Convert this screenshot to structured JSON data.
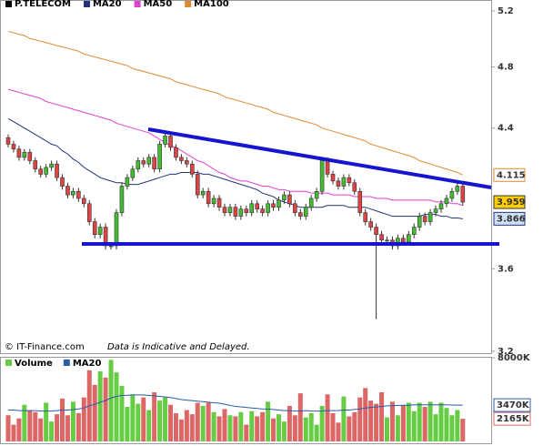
{
  "chart_data": [
    {
      "type": "candlestick",
      "log": true,
      "ylim": [
        3.2,
        5.2
      ],
      "yticks": [
        3.2,
        3.6,
        4.4,
        4.8,
        5.2
      ],
      "annotations": [
        "© IT-Finance.com",
        "Data is Indicative and Delayed."
      ],
      "price": {
        "name": "P.TELECOM",
        "color": "#000000",
        "up_color": "#44bb33",
        "down_color": "#dd4444",
        "box": "#ffcc00",
        "open": [
          4.34,
          4.3,
          4.27,
          4.22,
          4.25,
          4.2,
          4.15,
          4.12,
          4.16,
          4.18,
          4.1,
          4.05,
          4.0,
          4.02,
          3.98,
          3.95,
          3.85,
          3.78,
          3.82,
          3.72,
          3.72,
          3.9,
          4.05,
          4.1,
          4.15,
          4.2,
          4.18,
          4.22,
          4.15,
          4.3,
          4.35,
          4.28,
          4.22,
          4.2,
          4.18,
          4.12,
          4.0,
          4.02,
          3.95,
          3.98,
          3.93,
          3.9,
          3.93,
          3.88,
          3.92,
          3.9,
          3.95,
          3.92,
          3.9,
          3.95,
          3.93,
          3.97,
          4.0,
          3.95,
          3.9,
          3.88,
          3.93,
          3.98,
          4.02,
          4.2,
          4.12,
          4.08,
          4.05,
          4.1,
          4.07,
          4.02,
          3.9,
          3.85,
          3.82,
          3.78,
          3.75,
          3.75,
          3.72,
          3.76,
          3.74,
          3.78,
          3.82,
          3.88,
          3.85,
          3.9,
          3.92,
          3.95,
          3.98,
          4.02,
          4.05
        ],
        "high": [
          4.36,
          4.32,
          4.29,
          4.27,
          4.27,
          4.22,
          4.17,
          4.18,
          4.2,
          4.2,
          4.12,
          4.07,
          4.04,
          4.04,
          4.0,
          3.97,
          3.87,
          3.84,
          3.84,
          3.74,
          3.92,
          4.07,
          4.12,
          4.17,
          4.22,
          4.22,
          4.24,
          4.24,
          4.32,
          4.37,
          4.37,
          4.3,
          4.24,
          4.22,
          4.2,
          4.14,
          4.04,
          4.04,
          4.0,
          4.0,
          3.95,
          3.95,
          3.95,
          3.94,
          3.94,
          3.97,
          3.97,
          3.94,
          3.97,
          3.97,
          3.99,
          4.02,
          4.02,
          3.97,
          3.92,
          3.95,
          4.0,
          4.04,
          4.22,
          4.22,
          4.14,
          4.1,
          4.12,
          4.12,
          4.09,
          4.04,
          3.92,
          3.87,
          3.84,
          3.8,
          3.77,
          3.77,
          3.78,
          3.78,
          3.8,
          3.84,
          3.9,
          3.9,
          3.92,
          3.94,
          3.97,
          4.0,
          4.04,
          4.07,
          4.08
        ],
        "low": [
          4.28,
          4.25,
          4.2,
          4.2,
          4.18,
          4.13,
          4.1,
          4.1,
          4.14,
          4.08,
          4.03,
          3.98,
          3.98,
          3.96,
          3.93,
          3.83,
          3.76,
          3.76,
          3.7,
          3.7,
          3.7,
          3.88,
          4.03,
          4.08,
          4.13,
          4.16,
          4.16,
          4.13,
          4.13,
          4.28,
          4.26,
          4.2,
          4.18,
          4.16,
          4.1,
          3.98,
          3.98,
          3.93,
          3.93,
          3.91,
          3.88,
          3.88,
          3.86,
          3.86,
          3.88,
          3.88,
          3.9,
          3.88,
          3.88,
          3.91,
          3.91,
          3.95,
          3.93,
          3.88,
          3.86,
          3.86,
          3.91,
          3.96,
          4.0,
          4.1,
          4.06,
          4.03,
          4.03,
          4.05,
          4.0,
          3.88,
          3.83,
          3.8,
          3.35,
          3.73,
          3.73,
          3.7,
          3.7,
          3.72,
          3.72,
          3.76,
          3.8,
          3.83,
          3.83,
          3.88,
          3.9,
          3.93,
          3.96,
          4.0,
          3.94
        ],
        "close": [
          4.3,
          4.27,
          4.22,
          4.25,
          4.2,
          4.15,
          4.12,
          4.16,
          4.18,
          4.1,
          4.05,
          4.0,
          4.02,
          3.98,
          3.95,
          3.85,
          3.78,
          3.82,
          3.72,
          3.72,
          3.9,
          4.05,
          4.1,
          4.15,
          4.2,
          4.18,
          4.22,
          4.15,
          4.3,
          4.35,
          4.28,
          4.22,
          4.2,
          4.18,
          4.12,
          4.0,
          4.02,
          3.95,
          3.98,
          3.93,
          3.9,
          3.93,
          3.88,
          3.92,
          3.9,
          3.95,
          3.92,
          3.9,
          3.95,
          3.93,
          3.97,
          4.0,
          3.95,
          3.9,
          3.88,
          3.93,
          3.98,
          4.02,
          4.2,
          4.12,
          4.08,
          4.05,
          4.1,
          4.07,
          4.02,
          3.9,
          3.85,
          3.82,
          3.78,
          3.75,
          3.75,
          3.72,
          3.76,
          3.74,
          3.78,
          3.82,
          3.88,
          3.85,
          3.9,
          3.92,
          3.95,
          3.98,
          4.02,
          4.05,
          3.959
        ]
      },
      "series": [
        {
          "name": "MA20",
          "color": "#22337a",
          "box": "#cfe0f5",
          "values": [
            4.46,
            4.44,
            4.42,
            4.4,
            4.38,
            4.36,
            4.34,
            4.32,
            4.3,
            4.29,
            4.26,
            4.24,
            4.21,
            4.19,
            4.16,
            4.14,
            4.12,
            4.1,
            4.09,
            4.08,
            4.07,
            4.07,
            4.06,
            4.06,
            4.06,
            4.07,
            4.08,
            4.09,
            4.1,
            4.11,
            4.12,
            4.12,
            4.13,
            4.13,
            4.13,
            4.13,
            4.12,
            4.12,
            4.11,
            4.1,
            4.09,
            4.08,
            4.07,
            4.06,
            4.05,
            4.04,
            4.03,
            4.01,
            4.0,
            3.99,
            3.97,
            3.96,
            3.95,
            3.94,
            3.93,
            3.93,
            3.93,
            3.93,
            3.93,
            3.94,
            3.94,
            3.94,
            3.94,
            3.93,
            3.93,
            3.93,
            3.93,
            3.92,
            3.91,
            3.9,
            3.89,
            3.88,
            3.88,
            3.88,
            3.88,
            3.88,
            3.88,
            3.89,
            3.89,
            3.89,
            3.88,
            3.88,
            3.87,
            3.87,
            3.866
          ]
        },
        {
          "name": "MA50",
          "color": "#e040d0",
          "values": [
            4.65,
            4.64,
            4.63,
            4.62,
            4.61,
            4.6,
            4.59,
            4.57,
            4.56,
            4.55,
            4.54,
            4.53,
            4.52,
            4.51,
            4.5,
            4.49,
            4.48,
            4.47,
            4.46,
            4.45,
            4.43,
            4.42,
            4.41,
            4.4,
            4.39,
            4.38,
            4.37,
            4.35,
            4.33,
            4.31,
            4.29,
            4.28,
            4.26,
            4.24,
            4.22,
            4.2,
            4.19,
            4.17,
            4.15,
            4.13,
            4.12,
            4.1,
            4.09,
            4.08,
            4.08,
            4.07,
            4.06,
            4.05,
            4.05,
            4.04,
            4.03,
            4.03,
            4.02,
            4.02,
            4.02,
            4.02,
            4.01,
            4.01,
            4.01,
            4.01,
            4.0,
            4.0,
            4.0,
            4.0,
            3.99,
            3.99,
            3.99,
            3.99,
            3.98,
            3.98,
            3.98,
            3.97,
            3.97,
            3.97,
            3.97,
            3.97,
            3.97,
            3.97,
            3.97,
            3.96,
            3.96,
            3.96,
            3.95,
            3.95,
            3.94
          ]
        },
        {
          "name": "MA100",
          "color": "#e08a30",
          "box": "#ffffff",
          "values": [
            5.05,
            5.04,
            5.03,
            5.02,
            5.0,
            4.99,
            4.98,
            4.97,
            4.96,
            4.95,
            4.94,
            4.93,
            4.92,
            4.91,
            4.89,
            4.88,
            4.87,
            4.86,
            4.85,
            4.84,
            4.83,
            4.82,
            4.81,
            4.79,
            4.78,
            4.77,
            4.76,
            4.75,
            4.74,
            4.73,
            4.72,
            4.7,
            4.69,
            4.68,
            4.67,
            4.66,
            4.65,
            4.64,
            4.63,
            4.62,
            4.6,
            4.59,
            4.58,
            4.57,
            4.56,
            4.55,
            4.54,
            4.53,
            4.52,
            4.5,
            4.49,
            4.48,
            4.47,
            4.46,
            4.45,
            4.44,
            4.43,
            4.42,
            4.4,
            4.39,
            4.38,
            4.37,
            4.36,
            4.35,
            4.34,
            4.33,
            4.32,
            4.3,
            4.29,
            4.28,
            4.27,
            4.26,
            4.25,
            4.24,
            4.23,
            4.22,
            4.2,
            4.19,
            4.18,
            4.17,
            4.16,
            4.15,
            4.14,
            4.13,
            4.115
          ]
        }
      ]
    },
    {
      "type": "bar",
      "ylim": [
        0,
        8000
      ],
      "yticks": [
        {
          "value": 8000,
          "label": "8000K"
        }
      ],
      "series": [
        {
          "name": "Volume",
          "color": "#66cc44",
          "down_color": "#dd6666",
          "box": "#ffffff",
          "last_label": "2165K",
          "values": [
            2500,
            1600,
            2200,
            3500,
            3000,
            2800,
            2200,
            3700,
            1900,
            2600,
            4100,
            2500,
            3800,
            2700,
            4200,
            6800,
            5400,
            6700,
            6100,
            7800,
            6600,
            5300,
            3300,
            4500,
            3600,
            4200,
            3000,
            4700,
            3900,
            4200,
            3500,
            2700,
            2100,
            3000,
            2600,
            3700,
            3400,
            3700,
            2800,
            2400,
            3100,
            2500,
            2400,
            2800,
            1600,
            2900,
            2400,
            2800,
            3800,
            2200,
            2600,
            1900,
            3400,
            2500,
            4600,
            2300,
            2700,
            1600,
            3400,
            4500,
            2700,
            1800,
            4300,
            2400,
            2800,
            4200,
            5100,
            3900,
            3600,
            4700,
            2300,
            3800,
            2500,
            3500,
            3700,
            2900,
            3700,
            3300,
            3800,
            2600,
            3700,
            3200,
            2500,
            3000,
            2165
          ]
        },
        {
          "name": "MA20",
          "color": "#2a5ca8",
          "box": "#ffffff",
          "last_label": "3470K",
          "values": [
            3000,
            3000,
            2950,
            2950,
            2950,
            2950,
            2900,
            2900,
            2900,
            2950,
            3000,
            3000,
            3050,
            3100,
            3200,
            3400,
            3550,
            3750,
            3900,
            4150,
            4300,
            4400,
            4400,
            4450,
            4450,
            4450,
            4400,
            4350,
            4300,
            4250,
            4200,
            4100,
            4000,
            3950,
            3900,
            3850,
            3800,
            3750,
            3700,
            3650,
            3550,
            3450,
            3350,
            3300,
            3250,
            3200,
            3150,
            3100,
            3100,
            3050,
            3000,
            2950,
            2950,
            2900,
            2900,
            2950,
            2900,
            2900,
            2900,
            2950,
            2950,
            2950,
            3000,
            3000,
            3050,
            3100,
            3200,
            3250,
            3300,
            3350,
            3400,
            3400,
            3450,
            3450,
            3450,
            3500,
            3500,
            3500,
            3500,
            3500,
            3500,
            3500,
            3480,
            3470,
            3470
          ]
        }
      ]
    }
  ]
}
